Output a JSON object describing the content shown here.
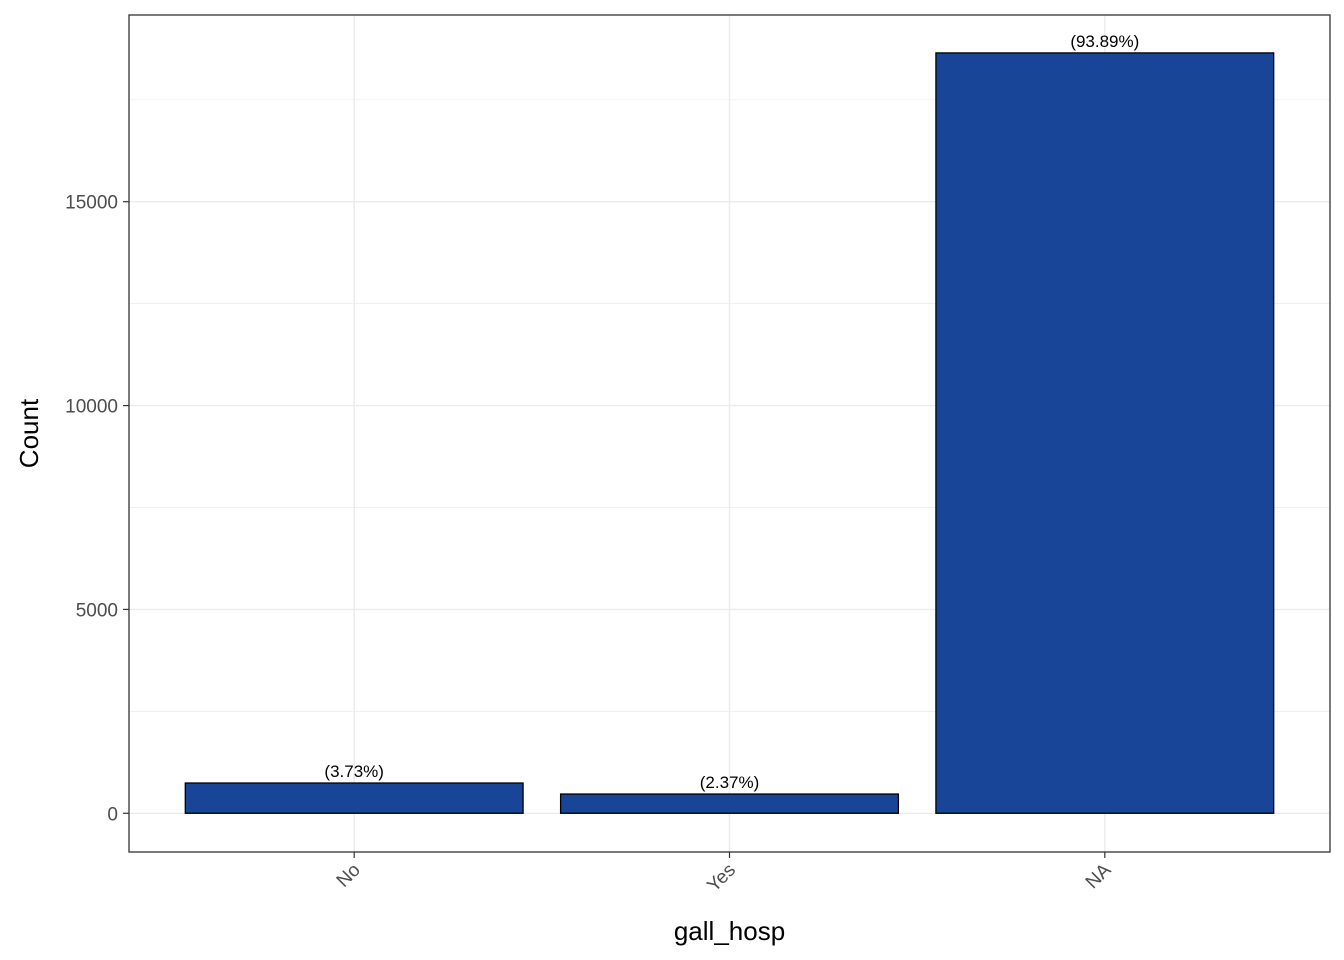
{
  "chart_data": {
    "type": "bar",
    "categories": [
      "No",
      "Yes",
      "NA"
    ],
    "values": [
      742,
      472,
      18650
    ],
    "data_labels": [
      "(3.73%)",
      "(2.37%)",
      "(93.89%)"
    ],
    "xlabel": "gall_hosp",
    "ylabel": "Count",
    "ylim": [
      -950,
      19580
    ],
    "yticks": [
      0,
      5000,
      10000,
      15000
    ],
    "ytick_labels": [
      "0",
      "5000",
      "10000",
      "15000"
    ],
    "grid": true,
    "legend": "none",
    "colors": {
      "bar_fill": "#184597",
      "bar_stroke": "#000000",
      "grid": "#ebebeb",
      "panel_border": "#333333",
      "tick_text": "#4d4d4d"
    }
  }
}
